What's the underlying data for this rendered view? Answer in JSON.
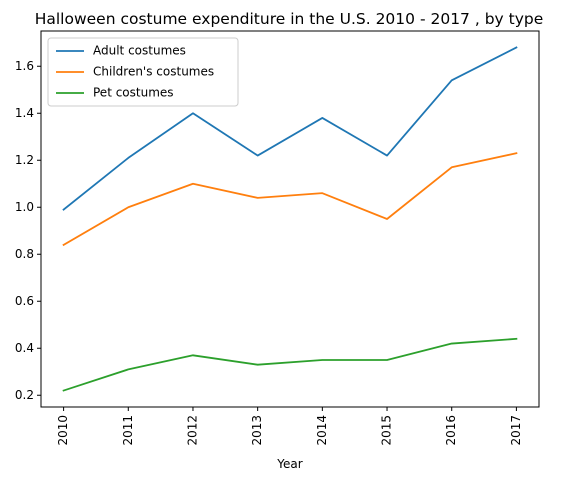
{
  "chart_data": {
    "type": "line",
    "title": "Halloween costume expenditure in the U.S. 2010 - 2017 , by type",
    "xlabel": "Year",
    "ylabel": "",
    "categories": [
      "2010",
      "2011",
      "2012",
      "2013",
      "2014",
      "2015",
      "2016",
      "2017"
    ],
    "yticks": [
      "0.2",
      "0.4",
      "0.6",
      "0.8",
      "1.0",
      "1.2",
      "1.4",
      "1.6"
    ],
    "ylim": [
      0.15,
      1.75
    ],
    "grid": false,
    "legend_position": "top-left",
    "series": [
      {
        "name": "Adult costumes",
        "color": "#1f77b4",
        "values": [
          0.99,
          1.21,
          1.4,
          1.22,
          1.38,
          1.22,
          1.54,
          1.68
        ]
      },
      {
        "name": "Children's costumes",
        "color": "#ff7f0e",
        "values": [
          0.84,
          1.0,
          1.1,
          1.04,
          1.06,
          0.95,
          1.17,
          1.23
        ]
      },
      {
        "name": "Pet costumes",
        "color": "#2ca02c",
        "values": [
          0.22,
          0.31,
          0.37,
          0.33,
          0.35,
          0.35,
          0.42,
          0.44
        ]
      }
    ]
  }
}
